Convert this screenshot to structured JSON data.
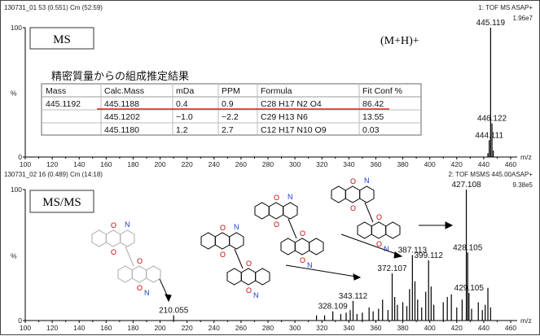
{
  "chart_data": [
    {
      "type": "bar",
      "header_left": "130731_01 53 (0.551) Cm (52:59)",
      "header_right": "1: TOF MS ASAP+",
      "intensity": "1.96e7",
      "panel_label": "MS",
      "annotation": "(M+H)+",
      "ylabel_left": "%",
      "xlabel": "m/z",
      "xlim": [
        100,
        460
      ],
      "ylim": [
        0,
        100
      ],
      "x_ticks": [
        100,
        120,
        140,
        160,
        180,
        200,
        220,
        240,
        260,
        280,
        300,
        320,
        340,
        360,
        380,
        400,
        420,
        440,
        460
      ],
      "y_ticks": [
        {
          "value": 0,
          "label": "0"
        },
        {
          "value": 100,
          "label": "100"
        }
      ],
      "peaks": [
        {
          "x": 445.119,
          "y": 100,
          "label": "445.119"
        },
        {
          "x": 446.122,
          "y": 26,
          "label": "446.122"
        },
        {
          "x": 444.111,
          "y": 13,
          "label": "444.111"
        },
        {
          "x": 447.1,
          "y": 5,
          "label": ""
        },
        {
          "x": 443.1,
          "y": 3,
          "label": ""
        }
      ]
    },
    {
      "type": "bar",
      "header_left": "130731_02 16 (0.489) Cm (14:18)",
      "header_right": "2: TOF MSMS 445.00ASAP+",
      "intensity": "9.38e5",
      "panel_label": "MS/MS",
      "ylabel_left": "%",
      "xlabel": "m/z",
      "xlim": [
        100,
        460
      ],
      "ylim": [
        0,
        100
      ],
      "x_ticks": [
        100,
        120,
        140,
        160,
        180,
        200,
        220,
        240,
        260,
        280,
        300,
        320,
        340,
        360,
        380,
        400,
        420,
        440,
        460
      ],
      "y_ticks": [
        {
          "value": 0,
          "label": "0"
        },
        {
          "value": 100,
          "label": "100"
        }
      ],
      "peaks": [
        {
          "x": 210.055,
          "y": 4,
          "label": "210.055"
        },
        {
          "x": 328.109,
          "y": 7,
          "label": "328.109"
        },
        {
          "x": 343.112,
          "y": 15,
          "label": "343.112"
        },
        {
          "x": 372.107,
          "y": 36,
          "label": "372.107"
        },
        {
          "x": 387.113,
          "y": 50,
          "label": "387.113"
        },
        {
          "x": 399.112,
          "y": 46,
          "label": "399.112"
        },
        {
          "x": 427.108,
          "y": 100,
          "label": "427.108"
        },
        {
          "x": 428.105,
          "y": 52,
          "label": "428.105"
        },
        {
          "x": 429.105,
          "y": 21,
          "label": "429.105"
        },
        {
          "x": 441.1,
          "y": 12,
          "label": ""
        },
        {
          "x": 443.1,
          "y": 25,
          "label": ""
        },
        {
          "x": 445.1,
          "y": 10,
          "label": ""
        },
        {
          "x": 334,
          "y": 5,
          "label": ""
        },
        {
          "x": 338,
          "y": 6,
          "label": ""
        },
        {
          "x": 341,
          "y": 8,
          "label": ""
        },
        {
          "x": 346,
          "y": 5,
          "label": ""
        },
        {
          "x": 350,
          "y": 6,
          "label": ""
        },
        {
          "x": 355,
          "y": 10,
          "label": ""
        },
        {
          "x": 358,
          "y": 7,
          "label": ""
        },
        {
          "x": 362,
          "y": 9,
          "label": ""
        },
        {
          "x": 365,
          "y": 16,
          "label": ""
        },
        {
          "x": 369,
          "y": 8,
          "label": ""
        },
        {
          "x": 374,
          "y": 18,
          "label": ""
        },
        {
          "x": 376,
          "y": 12,
          "label": ""
        },
        {
          "x": 380,
          "y": 14,
          "label": ""
        },
        {
          "x": 383,
          "y": 11,
          "label": ""
        },
        {
          "x": 385,
          "y": 24,
          "label": ""
        },
        {
          "x": 389,
          "y": 30,
          "label": ""
        },
        {
          "x": 391,
          "y": 16,
          "label": ""
        },
        {
          "x": 394,
          "y": 10,
          "label": ""
        },
        {
          "x": 397,
          "y": 22,
          "label": ""
        },
        {
          "x": 401,
          "y": 26,
          "label": ""
        },
        {
          "x": 403,
          "y": 12,
          "label": ""
        },
        {
          "x": 410,
          "y": 14,
          "label": ""
        },
        {
          "x": 413,
          "y": 18,
          "label": ""
        },
        {
          "x": 416,
          "y": 20,
          "label": ""
        },
        {
          "x": 420,
          "y": 10,
          "label": ""
        },
        {
          "x": 424,
          "y": 16,
          "label": ""
        },
        {
          "x": 431,
          "y": 9,
          "label": ""
        },
        {
          "x": 436,
          "y": 14,
          "label": ""
        },
        {
          "x": 439,
          "y": 8,
          "label": ""
        },
        {
          "x": 316,
          "y": 4,
          "label": ""
        },
        {
          "x": 322,
          "y": 4,
          "label": ""
        }
      ]
    }
  ],
  "table": {
    "caption": "精密質量からの組成推定結果",
    "headers": [
      "Mass",
      "Calc.Mass",
      "mDa",
      "PPM",
      "Formula",
      "Fit Conf %"
    ],
    "rows": [
      [
        "445.1192",
        "445.1188",
        "0.4",
        "0.9",
        "C28 H17 N2 O4",
        "86.42"
      ],
      [
        "",
        "445.1202",
        "−1.0",
        "−2.2",
        "C29 H13 N6",
        "13.55"
      ],
      [
        "",
        "445.1180",
        "1.2",
        "2.7",
        "C12 H17 N10 O9",
        "0.03"
      ]
    ]
  },
  "structures": {
    "oxygen_label": "O",
    "nitrogen_label": "N"
  }
}
